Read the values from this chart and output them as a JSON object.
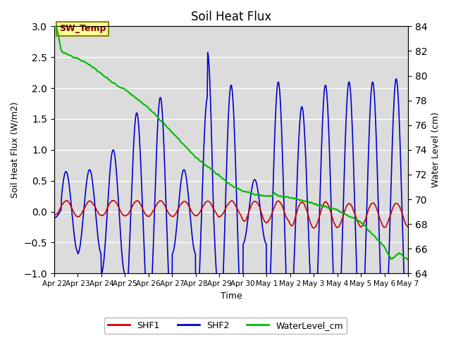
{
  "title": "Soil Heat Flux",
  "xlabel": "Time",
  "ylabel_left": "Soil Heat Flux (W/m2)",
  "ylabel_right": "Water Level (cm)",
  "ylim_left": [
    -1.0,
    3.0
  ],
  "ylim_right": [
    64,
    84
  ],
  "yticks_left": [
    -1.0,
    -0.5,
    0.0,
    0.5,
    1.0,
    1.5,
    2.0,
    2.5,
    3.0
  ],
  "yticks_right": [
    64,
    66,
    68,
    70,
    72,
    74,
    76,
    78,
    80,
    82,
    84
  ],
  "x_tick_labels": [
    "Apr 22",
    "Apr 23",
    "Apr 24",
    "Apr 25",
    "Apr 26",
    "Apr 27",
    "Apr 28",
    "Apr 29",
    "Apr 30",
    "May 1",
    "May 2",
    "May 3",
    "May 4",
    "May 5",
    "May 6",
    "May 7"
  ],
  "bg_color": "#dcdcdc",
  "shf1_color": "#cc0000",
  "shf2_color": "#0000cc",
  "water_color": "#00bb00",
  "annotation_text": "SW_Temp",
  "annotation_text_color": "#880000",
  "annotation_bg": "#ffff99",
  "annotation_edge": "#888800",
  "legend_labels": [
    "SHF1",
    "SHF2",
    "WaterLevel_cm"
  ],
  "figsize": [
    6.4,
    4.8
  ],
  "dpi": 100
}
